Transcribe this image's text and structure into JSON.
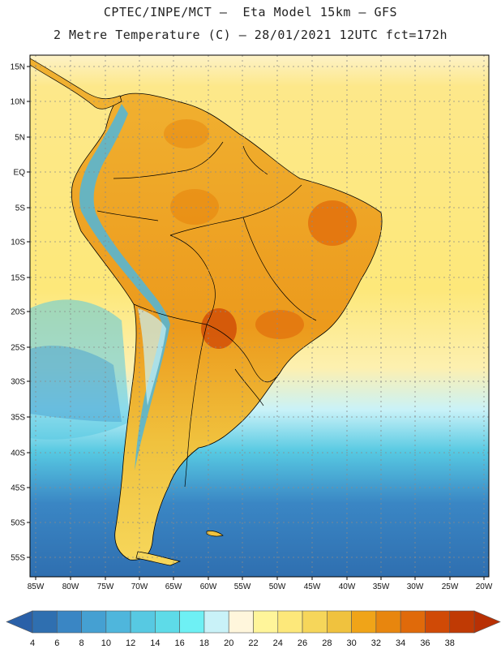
{
  "title": {
    "line1": "CPTEC/INPE/MCT –  Eta Model 15km – GFS",
    "line2": "2 Metre Temperature (C) – 28/01/2021 12UTC fct=172h"
  },
  "axes": {
    "lat_labels": [
      "15N",
      "10N",
      "5N",
      "EQ",
      "5S",
      "10S",
      "15S",
      "20S",
      "25S",
      "30S",
      "35S",
      "40S",
      "45S",
      "50S",
      "55S"
    ],
    "lon_labels": [
      "85W",
      "80W",
      "75W",
      "70W",
      "65W",
      "60W",
      "55W",
      "50W",
      "45W",
      "40W",
      "35W",
      "30W",
      "25W",
      "20W"
    ]
  },
  "colorbar": {
    "labels": [
      "4",
      "6",
      "8",
      "10",
      "12",
      "14",
      "16",
      "18",
      "20",
      "22",
      "24",
      "26",
      "28",
      "30",
      "32",
      "34",
      "36",
      "38"
    ],
    "colors": [
      "#2f6fb0",
      "#3a86c4",
      "#45a0d2",
      "#4fb6dc",
      "#57c9e2",
      "#5edbe8",
      "#6ef0f4",
      "#c9f2f8",
      "#fff6dc",
      "#fff59a",
      "#fde87a",
      "#f6d65a",
      "#f0c23e",
      "#f0a418",
      "#e8860e",
      "#e06a0a",
      "#d04a06",
      "#c03a04"
    ],
    "min_arrow_color": "#2a60a8",
    "max_arrow_color": "#b83004"
  },
  "colors": {
    "ocean_mid": "#fde87a",
    "continent_warm": "#f0a418",
    "andes_cold": "#4fb6dc",
    "south_ocean": "#2f6fb0",
    "border": "#000000"
  }
}
